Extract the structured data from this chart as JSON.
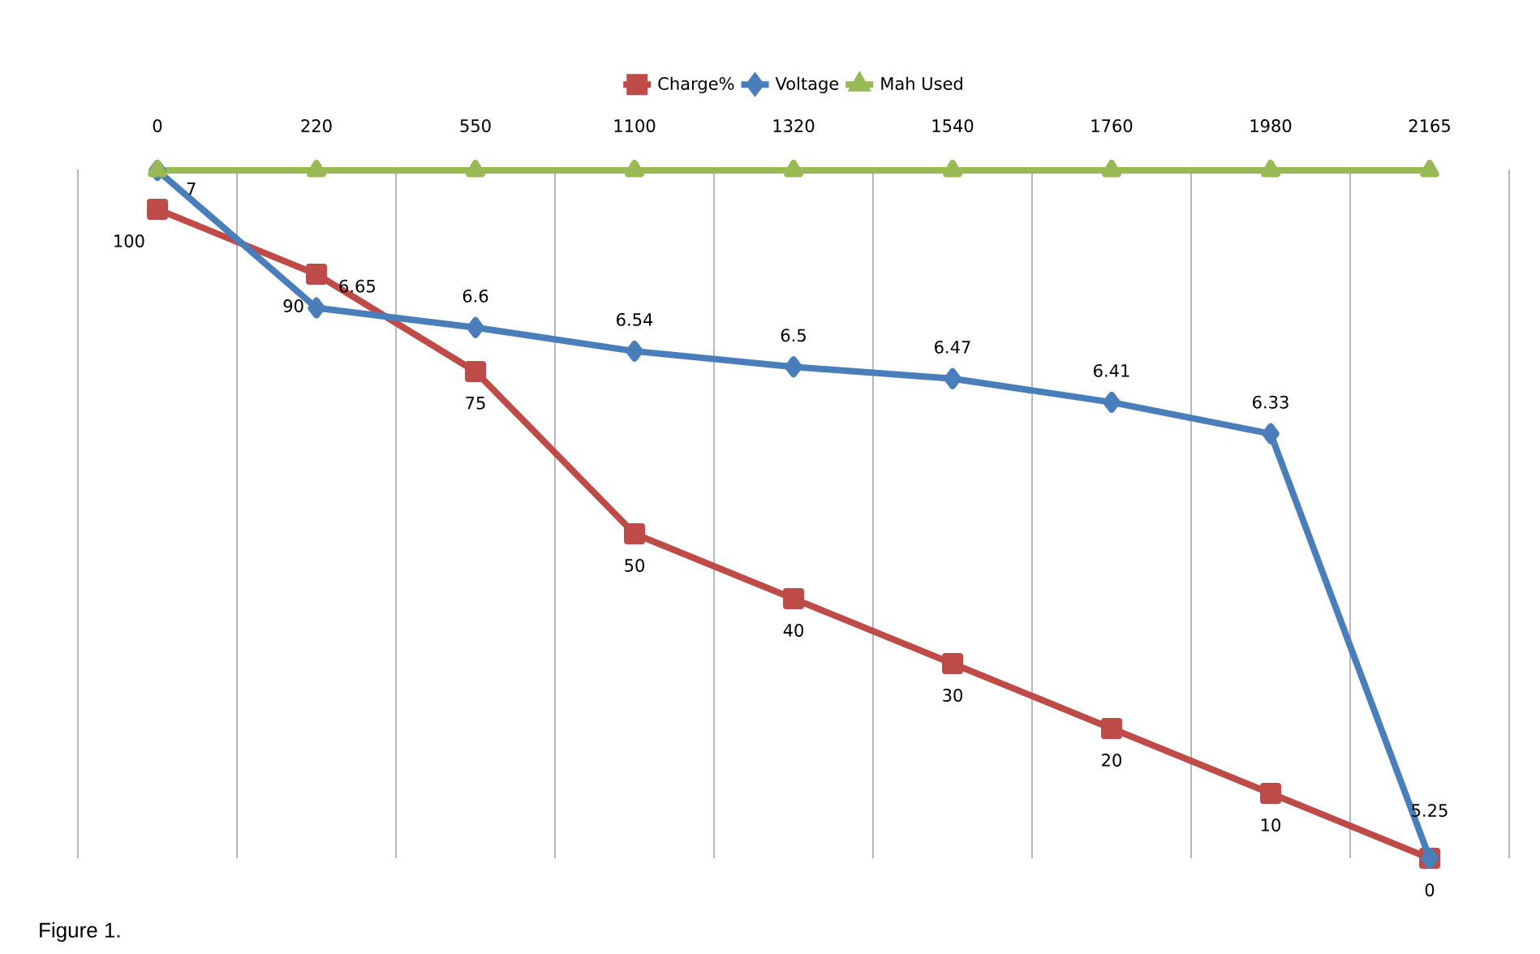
{
  "chart_data": {
    "type": "line",
    "categories": [
      "0",
      "220",
      "550",
      "1100",
      "1320",
      "1540",
      "1760",
      "1980",
      "2165"
    ],
    "series": [
      {
        "name": "Charge%",
        "color": "#be4b48",
        "marker": "square",
        "values": [
          100,
          90,
          75,
          50,
          40,
          30,
          20,
          10,
          0
        ],
        "value_labels": [
          "100",
          "90",
          "75",
          "50",
          "40",
          "30",
          "20",
          "10",
          "0"
        ]
      },
      {
        "name": "Voltage",
        "color": "#4a7ebb",
        "marker": "diamond",
        "axis": "y2",
        "values": [
          7,
          6.65,
          6.6,
          6.54,
          6.5,
          6.47,
          6.41,
          6.33,
          5.25
        ],
        "value_labels": [
          "7",
          "6.65",
          "6.6",
          "6.54",
          "6.5",
          "6.47",
          "6.41",
          "6.33",
          "5.25"
        ]
      },
      {
        "name": "Mah Used",
        "color": "#98b954",
        "marker": "triangle",
        "axis": "y2",
        "values": [
          7,
          7,
          7,
          7,
          7,
          7,
          7,
          7,
          7
        ]
      }
    ],
    "ylim": [
      0,
      106
    ],
    "y2lim": [
      5.25,
      7
    ],
    "tick_labels": "x",
    "grid": "x",
    "legend": "top",
    "line_style": "solid",
    "annotations": [
      "Figure 1."
    ]
  }
}
